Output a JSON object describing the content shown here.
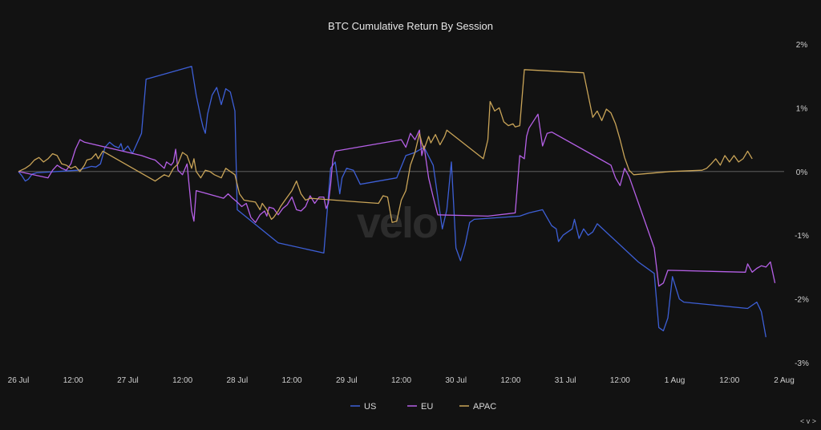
{
  "chart_data": {
    "type": "line",
    "title": "BTC Cumulative Return By Session",
    "watermark": "velo",
    "xlabel": "",
    "ylabel": "",
    "x_unit": "hours since 26 Jul 00:00",
    "xlim": [
      0,
      168
    ],
    "ylim": [
      -3,
      2
    ],
    "y_ticks": [
      2,
      1,
      0,
      -1,
      -2,
      -3
    ],
    "y_tick_labels": [
      "2%",
      "1%",
      "0%",
      "-1%",
      "-2%",
      "-3%"
    ],
    "x_ticks": [
      0,
      12,
      24,
      36,
      48,
      60,
      72,
      84,
      96,
      108,
      120,
      132,
      144,
      156,
      168
    ],
    "x_tick_labels": [
      "26 Jul",
      "12:00",
      "27 Jul",
      "12:00",
      "28 Jul",
      "12:00",
      "29 Jul",
      "12:00",
      "30 Jul",
      "12:00",
      "31 Jul",
      "12:00",
      "1 Aug",
      "12:00",
      "2 Aug"
    ],
    "grid": false,
    "zero_line": true,
    "legend_position": "bottom-center",
    "colors": {
      "background": "#121212",
      "zero_line": "#6a6a6a"
    },
    "series": [
      {
        "name": "US",
        "color": "#3d5fd6",
        "points": [
          [
            0,
            0
          ],
          [
            0.8,
            -0.07
          ],
          [
            1.5,
            -0.15
          ],
          [
            2.2,
            -0.12
          ],
          [
            3,
            -0.04
          ],
          [
            4,
            -0.02
          ],
          [
            13,
            0.02
          ],
          [
            15,
            0.06
          ],
          [
            16,
            0.08
          ],
          [
            17,
            0.07
          ],
          [
            18,
            0.12
          ],
          [
            19,
            0.38
          ],
          [
            20,
            0.46
          ],
          [
            21,
            0.4
          ],
          [
            22,
            0.37
          ],
          [
            22.5,
            0.44
          ],
          [
            23,
            0.32
          ],
          [
            24,
            0.4
          ],
          [
            25,
            0.28
          ],
          [
            27,
            0.6
          ],
          [
            28,
            1.45
          ],
          [
            38,
            1.65
          ],
          [
            39,
            1.2
          ],
          [
            40,
            0.85
          ],
          [
            40.5,
            0.7
          ],
          [
            41,
            0.6
          ],
          [
            41.5,
            0.9
          ],
          [
            42.5,
            1.2
          ],
          [
            43.5,
            1.32
          ],
          [
            44.5,
            1.05
          ],
          [
            45.5,
            1.3
          ],
          [
            46.5,
            1.25
          ],
          [
            47.5,
            0.95
          ],
          [
            48,
            -0.6
          ],
          [
            57,
            -1.12
          ],
          [
            67,
            -1.28
          ],
          [
            68.5,
            0.05
          ],
          [
            69.5,
            0.15
          ],
          [
            70.5,
            -0.35
          ],
          [
            71,
            -0.1
          ],
          [
            72,
            0.05
          ],
          [
            73.5,
            0.02
          ],
          [
            75,
            -0.2
          ],
          [
            83,
            -0.1
          ],
          [
            85,
            0.25
          ],
          [
            87,
            0.3
          ],
          [
            89,
            0.38
          ],
          [
            91,
            0.1
          ],
          [
            92,
            -0.4
          ],
          [
            93,
            -0.9
          ],
          [
            94,
            -0.6
          ],
          [
            95,
            0.15
          ],
          [
            96,
            -1.2
          ],
          [
            97,
            -1.4
          ],
          [
            98,
            -1.15
          ],
          [
            99,
            -0.8
          ],
          [
            100,
            -0.75
          ],
          [
            110,
            -0.7
          ],
          [
            112,
            -0.65
          ],
          [
            115,
            -0.6
          ],
          [
            117,
            -0.85
          ],
          [
            118,
            -0.9
          ],
          [
            118.5,
            -1.1
          ],
          [
            119.5,
            -1.0
          ],
          [
            120.5,
            -0.95
          ],
          [
            121.5,
            -0.9
          ],
          [
            122,
            -0.75
          ],
          [
            122.5,
            -0.9
          ],
          [
            123,
            -1.05
          ],
          [
            124,
            -0.9
          ],
          [
            125,
            -1.0
          ],
          [
            126,
            -0.95
          ],
          [
            127,
            -0.82
          ],
          [
            136,
            -1.42
          ],
          [
            139.5,
            -1.6
          ],
          [
            140.5,
            -2.45
          ],
          [
            141.5,
            -2.5
          ],
          [
            142.5,
            -2.3
          ],
          [
            143.5,
            -1.65
          ],
          [
            145,
            -2.0
          ],
          [
            146,
            -2.05
          ],
          [
            160,
            -2.15
          ],
          [
            161,
            -2.1
          ],
          [
            162,
            -2.05
          ],
          [
            163,
            -2.2
          ],
          [
            164,
            -2.6
          ]
        ]
      },
      {
        "name": "EU",
        "color": "#b560e6",
        "points": [
          [
            0,
            0
          ],
          [
            6.5,
            -0.1
          ],
          [
            7.5,
            0.02
          ],
          [
            8.5,
            0.1
          ],
          [
            9.5,
            0.05
          ],
          [
            10.5,
            0.02
          ],
          [
            11.5,
            0.12
          ],
          [
            12.5,
            0.35
          ],
          [
            13.5,
            0.5
          ],
          [
            14.5,
            0.46
          ],
          [
            27,
            0.25
          ],
          [
            29,
            0.2
          ],
          [
            30,
            0.18
          ],
          [
            32,
            0.05
          ],
          [
            32.5,
            0.15
          ],
          [
            33.5,
            0.1
          ],
          [
            34,
            0.15
          ],
          [
            34.5,
            0.35
          ],
          [
            35,
            0.02
          ],
          [
            36,
            -0.05
          ],
          [
            37,
            0.12
          ],
          [
            38,
            -0.62
          ],
          [
            38.5,
            -0.78
          ],
          [
            39,
            -0.3
          ],
          [
            40,
            -0.32
          ],
          [
            45,
            -0.42
          ],
          [
            46,
            -0.35
          ],
          [
            47,
            -0.42
          ],
          [
            48,
            -0.48
          ],
          [
            49,
            -0.55
          ],
          [
            50,
            -0.5
          ],
          [
            51,
            -0.72
          ],
          [
            52,
            -0.8
          ],
          [
            53,
            -0.68
          ],
          [
            54,
            -0.62
          ],
          [
            54.5,
            -0.7
          ],
          [
            55,
            -0.56
          ],
          [
            56,
            -0.58
          ],
          [
            57,
            -0.68
          ],
          [
            58,
            -0.58
          ],
          [
            59,
            -0.52
          ],
          [
            60,
            -0.4
          ],
          [
            61,
            -0.6
          ],
          [
            62,
            -0.62
          ],
          [
            63,
            -0.55
          ],
          [
            64,
            -0.38
          ],
          [
            65,
            -0.5
          ],
          [
            66,
            -0.4
          ],
          [
            67,
            -0.4
          ],
          [
            67.5,
            -0.58
          ],
          [
            68,
            -0.5
          ],
          [
            68.5,
            -0.2
          ],
          [
            69,
            0.2
          ],
          [
            69.5,
            0.32
          ],
          [
            84,
            0.5
          ],
          [
            85,
            0.38
          ],
          [
            86,
            0.6
          ],
          [
            87,
            0.5
          ],
          [
            88,
            0.65
          ],
          [
            88.5,
            0.25
          ],
          [
            89,
            0.4
          ],
          [
            90,
            -0.1
          ],
          [
            91,
            -0.4
          ],
          [
            92,
            -0.68
          ],
          [
            103,
            -0.7
          ],
          [
            109,
            -0.65
          ],
          [
            110,
            0.25
          ],
          [
            111,
            0.2
          ],
          [
            111.5,
            0.55
          ],
          [
            112,
            0.68
          ],
          [
            114,
            0.9
          ],
          [
            115,
            0.4
          ],
          [
            116,
            0.6
          ],
          [
            117,
            0.62
          ],
          [
            128,
            0.18
          ],
          [
            130,
            0.1
          ],
          [
            131,
            -0.1
          ],
          [
            132,
            -0.22
          ],
          [
            133,
            0.05
          ],
          [
            134,
            -0.08
          ],
          [
            139.5,
            -1.2
          ],
          [
            140.5,
            -1.8
          ],
          [
            141.5,
            -1.75
          ],
          [
            142.5,
            -1.55
          ],
          [
            159.5,
            -1.58
          ],
          [
            160,
            -1.45
          ],
          [
            161,
            -1.58
          ],
          [
            162,
            -1.52
          ],
          [
            163,
            -1.48
          ],
          [
            164,
            -1.5
          ],
          [
            165,
            -1.42
          ],
          [
            166,
            -1.75
          ]
        ]
      },
      {
        "name": "APAC",
        "color": "#c9a458",
        "points": [
          [
            0,
            0
          ],
          [
            1.5,
            0.05
          ],
          [
            2.5,
            0.1
          ],
          [
            3.5,
            0.18
          ],
          [
            4.5,
            0.22
          ],
          [
            5.5,
            0.15
          ],
          [
            6.5,
            0.2
          ],
          [
            7.5,
            0.28
          ],
          [
            8.5,
            0.25
          ],
          [
            9.5,
            0.12
          ],
          [
            10.5,
            0.1
          ],
          [
            11.5,
            0.05
          ],
          [
            12.5,
            0.08
          ],
          [
            13.5,
            0.0
          ],
          [
            14.5,
            0.1
          ],
          [
            15,
            0.18
          ],
          [
            16,
            0.2
          ],
          [
            17,
            0.28
          ],
          [
            17.5,
            0.2
          ],
          [
            18.5,
            0.32
          ],
          [
            30,
            -0.15
          ],
          [
            31,
            -0.1
          ],
          [
            32,
            -0.05
          ],
          [
            33,
            -0.08
          ],
          [
            34,
            0.05
          ],
          [
            35,
            0.12
          ],
          [
            36,
            0.3
          ],
          [
            37,
            0.25
          ],
          [
            38,
            0.05
          ],
          [
            38.5,
            0.2
          ],
          [
            39,
            0.0
          ],
          [
            40,
            -0.1
          ],
          [
            41,
            0.02
          ],
          [
            42,
            0.0
          ],
          [
            43,
            -0.05
          ],
          [
            44.5,
            -0.1
          ],
          [
            45.5,
            0.05
          ],
          [
            46.5,
            0.0
          ],
          [
            47.5,
            -0.05
          ],
          [
            48.5,
            -0.35
          ],
          [
            49.5,
            -0.45
          ],
          [
            52,
            -0.48
          ],
          [
            53,
            -0.6
          ],
          [
            53.5,
            -0.5
          ],
          [
            54.5,
            -0.6
          ],
          [
            55.5,
            -0.75
          ],
          [
            56,
            -0.72
          ],
          [
            57,
            -0.62
          ],
          [
            57.5,
            -0.55
          ],
          [
            58.5,
            -0.45
          ],
          [
            60,
            -0.3
          ],
          [
            61,
            -0.15
          ],
          [
            62,
            -0.35
          ],
          [
            63,
            -0.45
          ],
          [
            64,
            -0.42
          ],
          [
            75,
            -0.48
          ],
          [
            79,
            -0.5
          ],
          [
            80,
            -0.38
          ],
          [
            81,
            -0.4
          ],
          [
            82,
            -0.8
          ],
          [
            83,
            -0.78
          ],
          [
            84,
            -0.45
          ],
          [
            85,
            -0.3
          ],
          [
            86,
            0.1
          ],
          [
            87,
            0.3
          ],
          [
            88,
            0.6
          ],
          [
            88.5,
            0.45
          ],
          [
            89,
            0.35
          ],
          [
            90,
            0.55
          ],
          [
            90.5,
            0.45
          ],
          [
            91.5,
            0.58
          ],
          [
            92.5,
            0.42
          ],
          [
            93.5,
            0.55
          ],
          [
            94,
            0.65
          ],
          [
            102,
            0.2
          ],
          [
            103,
            0.5
          ],
          [
            103.5,
            1.1
          ],
          [
            104.5,
            0.95
          ],
          [
            105.5,
            1.0
          ],
          [
            106.5,
            0.78
          ],
          [
            107.5,
            0.72
          ],
          [
            108.5,
            0.75
          ],
          [
            109,
            0.7
          ],
          [
            110,
            0.72
          ],
          [
            111,
            1.6
          ],
          [
            124,
            1.55
          ],
          [
            125,
            1.2
          ],
          [
            126,
            0.85
          ],
          [
            126.5,
            0.9
          ],
          [
            127,
            0.95
          ],
          [
            128,
            0.8
          ],
          [
            129,
            0.98
          ],
          [
            130,
            0.92
          ],
          [
            131,
            0.75
          ],
          [
            132,
            0.5
          ],
          [
            133,
            0.22
          ],
          [
            134,
            0.02
          ],
          [
            135,
            -0.05
          ],
          [
            143,
            0.0
          ],
          [
            150,
            0.02
          ],
          [
            151,
            0.05
          ],
          [
            152,
            0.12
          ],
          [
            153,
            0.2
          ],
          [
            154,
            0.1
          ],
          [
            155,
            0.25
          ],
          [
            156,
            0.15
          ],
          [
            157,
            0.25
          ],
          [
            158,
            0.15
          ],
          [
            159,
            0.2
          ],
          [
            160,
            0.32
          ],
          [
            161,
            0.2
          ]
        ]
      }
    ]
  },
  "nav_label": "< v >"
}
